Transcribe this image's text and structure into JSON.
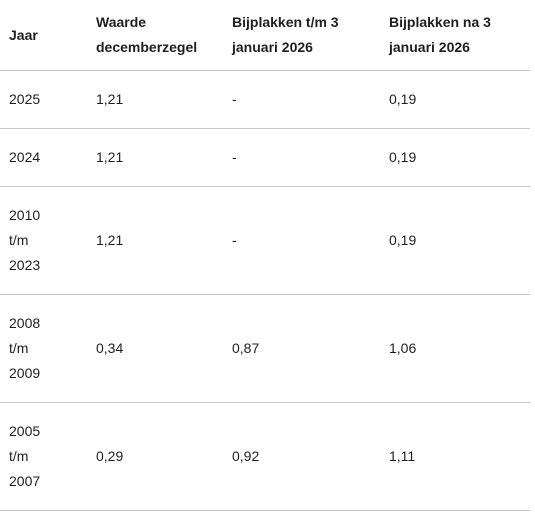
{
  "header": {
    "col1": "Jaar",
    "col2": "Waarde\ndecemberzegel",
    "col3": "Bijplakken t/m 3\njanuari 2026",
    "col4": "Bijplakken na 3\njanuari 2026"
  },
  "rows": [
    {
      "year": "2025",
      "value": "1,21",
      "until": "-",
      "after": "0,19"
    },
    {
      "year": "2024",
      "value": "1,21",
      "until": "-",
      "after": "0,19"
    },
    {
      "year": "2010\nt/m\n2023",
      "value": "1,21",
      "until": "-",
      "after": "0,19"
    },
    {
      "year": "2008\nt/m\n2009",
      "value": "0,34",
      "until": "0,87",
      "after": "1,06"
    },
    {
      "year": "2005\nt/m\n2007",
      "value": "0,29",
      "until": "0,92",
      "after": "1,11"
    }
  ]
}
